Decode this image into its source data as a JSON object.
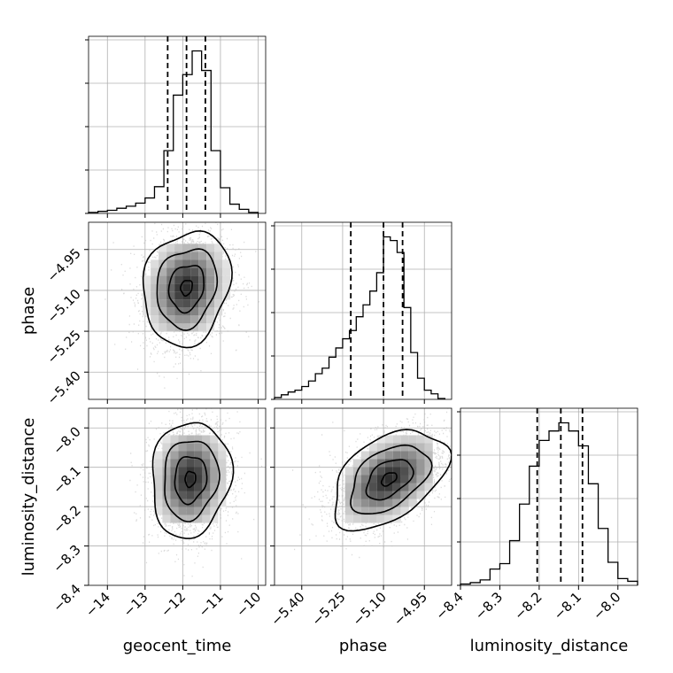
{
  "chart_data": {
    "type": "corner",
    "grid": true,
    "parameters": [
      {
        "name": "geocent_time",
        "label": "geocent_time",
        "range": [
          -14.5,
          -9.8
        ],
        "ticks": [
          -14,
          -13,
          -12,
          -11,
          -10
        ],
        "tick_labels": [
          "−14",
          "−13",
          "−12",
          "−11",
          "−10"
        ],
        "quantiles": [
          -12.4,
          -11.9,
          -11.4
        ],
        "median": -11.9
      },
      {
        "name": "phase",
        "label": "phase",
        "range": [
          -5.5,
          -4.85
        ],
        "ticks": [
          -5.4,
          -5.25,
          -5.1,
          -4.95
        ],
        "tick_labels": [
          "−5.40",
          "−5.25",
          "−5.10",
          "−4.95"
        ],
        "quantiles": [
          -5.22,
          -5.1,
          -5.03
        ],
        "median": -5.1
      },
      {
        "name": "luminosity_distance",
        "label": "luminosity_distance",
        "range": [
          -8.4,
          -7.95
        ],
        "ticks": [
          -8.4,
          -8.3,
          -8.2,
          -8.1,
          -8.0
        ],
        "tick_labels": [
          "−8.4",
          "−8.3",
          "−8.2",
          "−8.1",
          "−8.0"
        ],
        "quantiles": [
          -8.205,
          -8.145,
          -8.09
        ],
        "median": -8.145
      }
    ],
    "histograms": [
      {
        "parameter": "geocent_time",
        "edges": [
          -14.5,
          -14.25,
          -14.0,
          -13.75,
          -13.5,
          -13.25,
          -13.0,
          -12.75,
          -12.5,
          -12.25,
          -12.0,
          -11.75,
          -11.5,
          -11.25,
          -11.0,
          -10.75,
          -10.5,
          -10.25,
          -10.0
        ],
        "counts": [
          1,
          2,
          3,
          5,
          7,
          10,
          15,
          26,
          61,
          115,
          135,
          158,
          139,
          61,
          25,
          9,
          4,
          1
        ]
      },
      {
        "parameter": "phase",
        "edges": [
          -5.5,
          -5.475,
          -5.45,
          -5.425,
          -5.4,
          -5.375,
          -5.35,
          -5.325,
          -5.3,
          -5.275,
          -5.25,
          -5.225,
          -5.2,
          -5.175,
          -5.15,
          -5.125,
          -5.1,
          -5.075,
          -5.05,
          -5.025,
          -5.0,
          -4.975,
          -4.95,
          -4.925,
          -4.9,
          -4.875
        ],
        "counts": [
          2,
          5,
          8,
          10,
          14,
          20,
          28,
          34,
          46,
          56,
          66,
          75,
          90,
          103,
          118,
          138,
          177,
          173,
          160,
          100,
          51,
          23,
          10,
          6,
          1
        ]
      },
      {
        "parameter": "luminosity_distance",
        "edges": [
          -8.4,
          -8.375,
          -8.35,
          -8.325,
          -8.3,
          -8.275,
          -8.25,
          -8.225,
          -8.2,
          -8.175,
          -8.15,
          -8.125,
          -8.1,
          -8.075,
          -8.05,
          -8.025,
          -8.0,
          -7.975,
          -7.95
        ],
        "counts": [
          1,
          2,
          4,
          12,
          16,
          33,
          60,
          88,
          107,
          114,
          120,
          114,
          103,
          75,
          42,
          17,
          5,
          3
        ]
      }
    ],
    "panels_2d": [
      {
        "x": "geocent_time",
        "y": "phase",
        "peak": [
          -11.9,
          -5.09
        ],
        "sigma": [
          0.55,
          0.1
        ],
        "rho": 0.15
      },
      {
        "x": "geocent_time",
        "y": "luminosity_distance",
        "peak": [
          -11.8,
          -8.13
        ],
        "sigma": [
          0.5,
          0.07
        ],
        "rho": 0.1
      },
      {
        "x": "phase",
        "y": "luminosity_distance",
        "peak": [
          -5.08,
          -8.13
        ],
        "sigma": [
          0.1,
          0.06
        ],
        "rho": 0.45
      }
    ],
    "style": {
      "hist_color": "#000000",
      "contour_color": "#000000",
      "point_color": "#bdbdbd",
      "grid_color": "#b0b0b0",
      "quantile_line": "dashed"
    }
  }
}
